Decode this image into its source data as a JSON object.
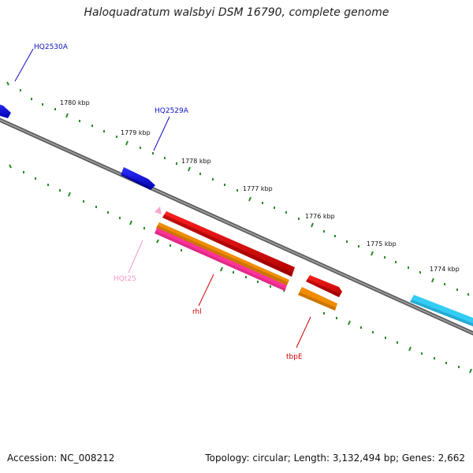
{
  "title": "Haloquadratum walsbyi DSM 16790, complete genome",
  "footer": {
    "accession": "Accession: NC_008212",
    "topology": "Topology: circular; Length: 3,132,494 bp; Genes: 2,662"
  },
  "ticks": [
    "1780 kbp",
    "1779 kbp",
    "1778 kbp",
    "1777 kbp",
    "1776 kbp",
    "1775 kbp",
    "1774 kbp"
  ],
  "gene_labels": {
    "hq2530a": "HQ2530A",
    "hq2529a": "HQ2529A",
    "hqt25": "HQt25",
    "rhl": "rhl",
    "tbpe": "tbpE"
  },
  "colors": {
    "backbone": "#7a7a7a",
    "tick": "#2a8a2a",
    "blue_gene": "#0000dd",
    "cyan_gene": "#33ccf5",
    "red_gene": "#e00000",
    "orange_gene": "#f08c00",
    "pink_gene": "#ff3399",
    "light_pink_gene": "#f7a8cc",
    "label_blue": "#1010c0",
    "label_red": "#cc0000",
    "label_pink": "#f39ac4"
  }
}
